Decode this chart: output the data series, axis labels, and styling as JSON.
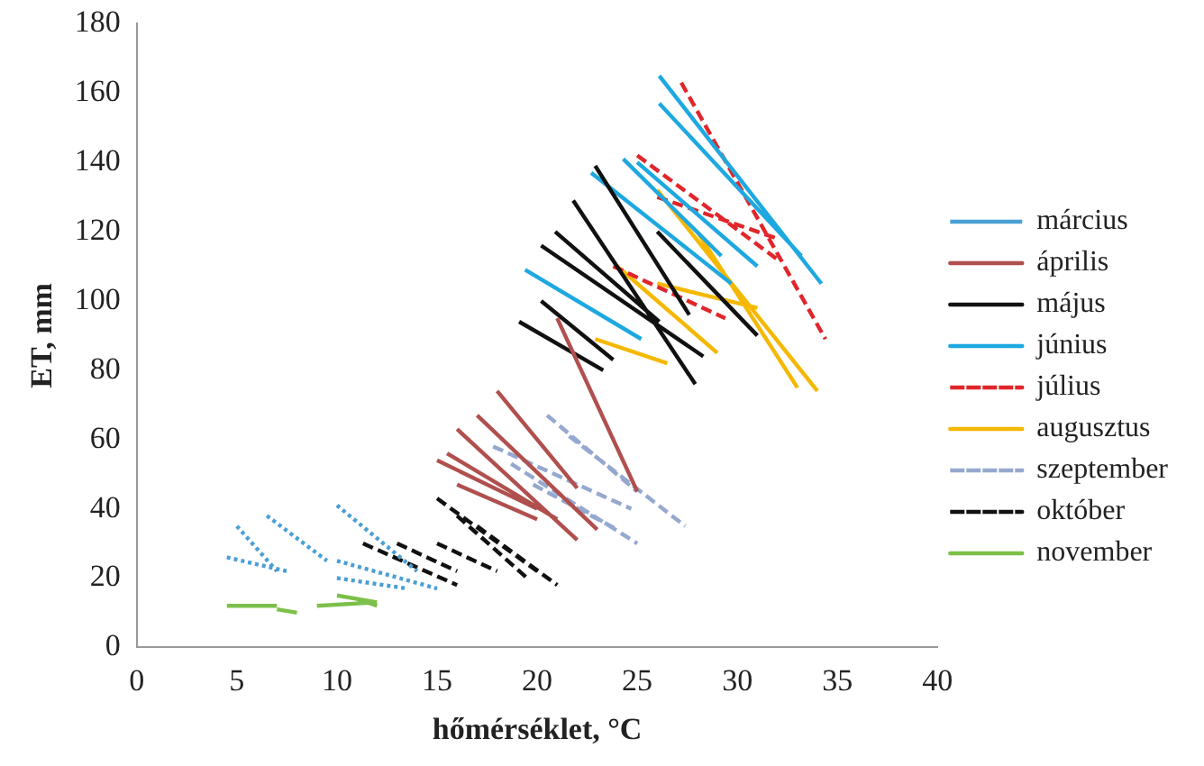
{
  "chart_data": {
    "type": "line",
    "xlabel": "hőmérséklet, °C",
    "ylabel": "ET, mm",
    "xlim": [
      0,
      40
    ],
    "xticks": [
      0,
      5,
      10,
      15,
      20,
      25,
      30,
      35,
      40
    ],
    "ylim": [
      0,
      180
    ],
    "yticks": [
      0,
      20,
      40,
      60,
      80,
      100,
      120,
      140,
      160,
      180
    ],
    "grid": false,
    "legend": "right",
    "marker": "none",
    "series": [
      {
        "name": "március",
        "color": "#4a9fd4",
        "line_style": "dotted",
        "x": [
          5,
          7,
          null,
          4.5,
          7.5,
          null,
          6.5,
          9.5,
          null,
          10,
          14,
          null,
          10,
          15,
          null,
          10,
          13.5
        ],
        "values": [
          35,
          22,
          null,
          26,
          22,
          null,
          38,
          25,
          null,
          41,
          22,
          null,
          25,
          17,
          null,
          20,
          17
        ]
      },
      {
        "name": "április",
        "color": "#b0504e",
        "line_style": "solid",
        "x": [
          15.5,
          21,
          null,
          16,
          22,
          null,
          17,
          23,
          null,
          18,
          22,
          null,
          15,
          20,
          null,
          21,
          25,
          null,
          16,
          20
        ],
        "values": [
          56,
          37,
          null,
          63,
          31,
          null,
          67,
          34,
          null,
          74,
          46,
          null,
          54,
          40,
          null,
          95,
          45,
          null,
          47,
          37
        ]
      },
      {
        "name": "május",
        "color": "#111111",
        "line_style": "solid",
        "x": [
          21.8,
          27.9,
          null,
          20.9,
          26.1,
          null,
          20.2,
          28.3,
          null,
          20.2,
          23.8,
          null,
          19.1,
          23.3,
          null,
          22.9,
          27.6,
          null,
          26,
          31
        ],
        "values": [
          129,
          76,
          null,
          120,
          94,
          null,
          116,
          84,
          null,
          100,
          83,
          null,
          94,
          80,
          null,
          139,
          96,
          null,
          120,
          90
        ]
      },
      {
        "name": "június",
        "color": "#1ea8e0",
        "line_style": "solid",
        "x": [
          26.1,
          34.2,
          null,
          26.1,
          33.2,
          null,
          19.4,
          25.2,
          null,
          22.7,
          29.7,
          null,
          24.3,
          29.2,
          null,
          25,
          31
        ],
        "values": [
          165,
          105,
          null,
          157,
          113,
          null,
          109,
          89,
          null,
          137,
          105,
          null,
          141,
          113,
          null,
          140,
          110
        ]
      },
      {
        "name": "július",
        "color": "#e0262b",
        "line_style": "dashed",
        "x": [
          27.2,
          34.4,
          null,
          23.8,
          29.4,
          null,
          25,
          32,
          null,
          26,
          32
        ],
        "values": [
          163,
          89,
          null,
          110,
          95,
          null,
          142,
          112,
          null,
          130,
          118
        ]
      },
      {
        "name": "augusztus",
        "color": "#f5b800",
        "line_style": "solid",
        "x": [
          26,
          34,
          null,
          28,
          33,
          null,
          22.9,
          26.5,
          null,
          24,
          29,
          null,
          26,
          31
        ],
        "values": [
          132,
          74,
          null,
          120,
          75,
          null,
          89,
          82,
          null,
          110,
          85,
          null,
          105,
          98
        ]
      },
      {
        "name": "szeptember",
        "color": "#95a8cf",
        "line_style": "dashed",
        "x": [
          20.5,
          25,
          null,
          21.6,
          27.4,
          null,
          17.8,
          24.7,
          null,
          18.7,
          25,
          null,
          19.8,
          24
        ],
        "values": [
          67,
          45,
          null,
          61,
          35,
          null,
          58,
          40,
          null,
          53,
          30,
          null,
          47,
          34
        ]
      },
      {
        "name": "október",
        "color": "#111111",
        "line_style": "dashed",
        "x": [
          11.3,
          16,
          null,
          15,
          20,
          null,
          16,
          19.5,
          null,
          17,
          21,
          null,
          15,
          18,
          null,
          13,
          16
        ],
        "values": [
          30,
          18,
          null,
          43,
          22,
          null,
          38,
          20,
          null,
          35,
          18,
          null,
          30,
          22,
          null,
          30,
          22
        ]
      },
      {
        "name": "november",
        "color": "#7cc04a",
        "line_style": "solid",
        "x": [
          4.5,
          7,
          null,
          7,
          8,
          null,
          9,
          12,
          null,
          10,
          12,
          null,
          11,
          12
        ],
        "values": [
          12,
          12,
          null,
          11,
          10,
          null,
          12,
          13,
          null,
          15,
          13,
          null,
          14,
          12
        ]
      }
    ]
  }
}
